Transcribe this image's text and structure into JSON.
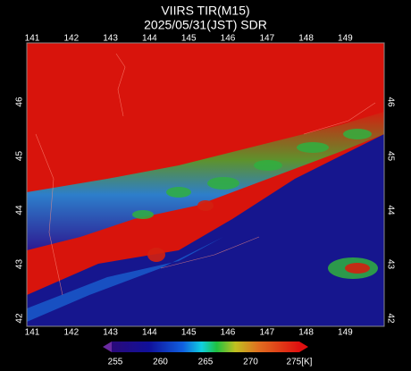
{
  "title": "VIIRS TIR(M15)",
  "subtitle": "2025/05/31(JST) SDR",
  "longitude_labels": [
    "141",
    "142",
    "143",
    "144",
    "145",
    "146",
    "147",
    "148",
    "149"
  ],
  "latitude_labels": [
    "46",
    "45",
    "44",
    "43",
    "42"
  ],
  "colorbar": {
    "labels": [
      "255",
      "260",
      "265",
      "270",
      "275[K]"
    ]
  }
}
